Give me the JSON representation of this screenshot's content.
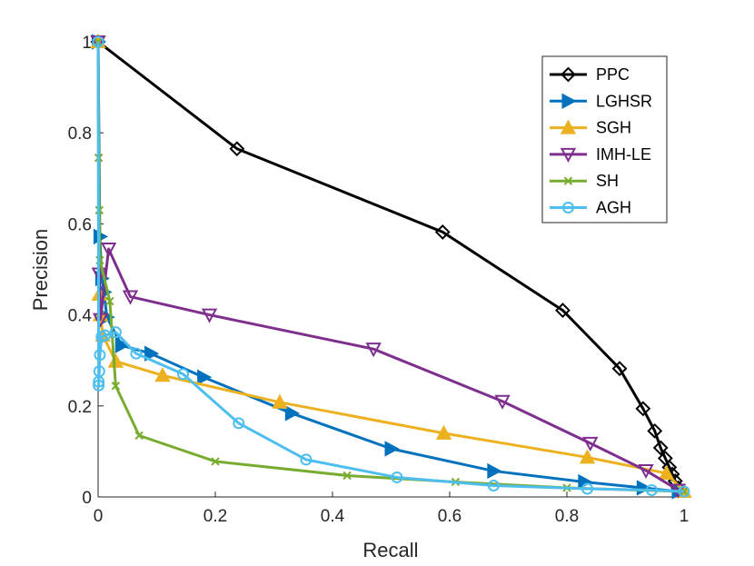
{
  "chart_data": {
    "type": "line",
    "title": "",
    "xlabel": "Recall",
    "ylabel": "Precision",
    "xlim": [
      0,
      1
    ],
    "ylim": [
      0,
      1
    ],
    "xticks": [
      0,
      0.2,
      0.4,
      0.6,
      0.8,
      1
    ],
    "yticks": [
      0,
      0.2,
      0.4,
      0.6,
      0.8,
      1
    ],
    "xtick_labels": [
      "0",
      "0.2",
      "0.4",
      "0.6",
      "0.8",
      "1"
    ],
    "ytick_labels": [
      "0",
      "0.2",
      "0.4",
      "0.6",
      "0.8",
      "1"
    ],
    "grid": false,
    "legend_position": "top-right",
    "series": [
      {
        "name": "PPC",
        "color": "#000000",
        "marker": "diamond",
        "x": [
          0,
          0.237,
          0.588,
          0.793,
          0.89,
          0.93,
          0.95,
          0.96,
          0.968,
          0.975,
          0.98,
          0.985,
          0.99
        ],
        "y": [
          1.0,
          0.765,
          0.582,
          0.41,
          0.282,
          0.194,
          0.145,
          0.108,
          0.085,
          0.065,
          0.05,
          0.035,
          0.02
        ]
      },
      {
        "name": "LGHSR",
        "color": "#0072bd",
        "marker": "triangle-right",
        "x": [
          0,
          0.003,
          0.006,
          0.01,
          0.015,
          0.04,
          0.09,
          0.18,
          0.33,
          0.5,
          0.675,
          0.83,
          0.93,
          0.99
        ],
        "y": [
          1.0,
          0.572,
          0.48,
          0.45,
          0.395,
          0.333,
          0.315,
          0.263,
          0.184,
          0.106,
          0.057,
          0.033,
          0.02,
          0.012
        ]
      },
      {
        "name": "SGH",
        "color": "#edb120",
        "marker": "triangle-up",
        "x": [
          0,
          0.002,
          0.004,
          0.008,
          0.03,
          0.11,
          0.31,
          0.59,
          0.835,
          0.97,
          1.0
        ],
        "y": [
          1.0,
          0.445,
          0.4,
          0.355,
          0.298,
          0.267,
          0.208,
          0.14,
          0.087,
          0.052,
          0.012
        ]
      },
      {
        "name": "IMH-LE",
        "color": "#7e2f8e",
        "marker": "triangle-down",
        "x": [
          0,
          0.002,
          0.004,
          0.018,
          0.055,
          0.19,
          0.47,
          0.69,
          0.84,
          0.935,
          0.99
        ],
        "y": [
          1.0,
          0.49,
          0.39,
          0.545,
          0.44,
          0.4,
          0.325,
          0.21,
          0.118,
          0.058,
          0.015
        ]
      },
      {
        "name": "SH",
        "color": "#77ac30",
        "marker": "x",
        "x": [
          0,
          0.001,
          0.002,
          0.003,
          0.02,
          0.03,
          0.07,
          0.2,
          0.425,
          0.61,
          0.8,
          1.0
        ],
        "y": [
          1.0,
          0.745,
          0.63,
          0.52,
          0.43,
          0.244,
          0.135,
          0.078,
          0.047,
          0.033,
          0.02,
          0.012
        ]
      },
      {
        "name": "AGH",
        "color": "#4dbeee",
        "marker": "circle",
        "x": [
          0,
          0.001,
          0.001,
          0.002,
          0.003,
          0.006,
          0.012,
          0.03,
          0.065,
          0.145,
          0.24,
          0.355,
          0.51,
          0.675,
          0.835,
          0.945,
          1.0
        ],
        "y": [
          1.0,
          0.245,
          0.253,
          0.276,
          0.312,
          0.352,
          0.355,
          0.362,
          0.315,
          0.27,
          0.162,
          0.082,
          0.043,
          0.025,
          0.018,
          0.015,
          0.012
        ]
      }
    ]
  }
}
